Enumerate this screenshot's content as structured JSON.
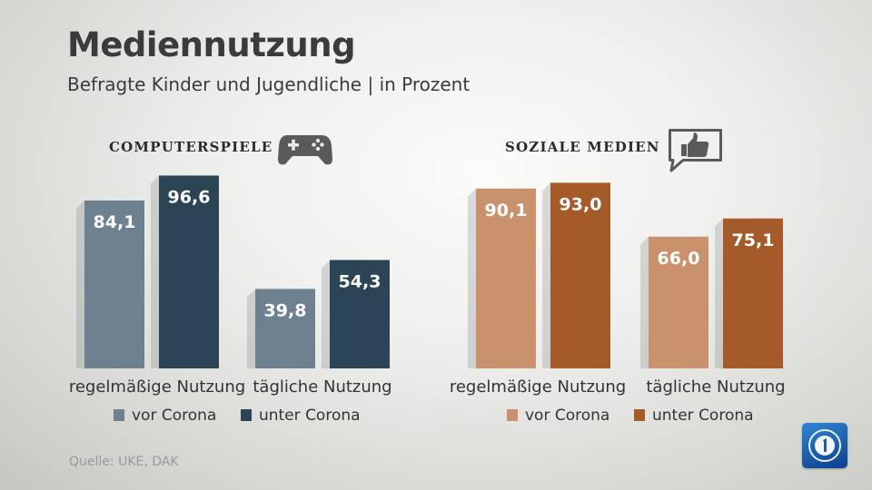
{
  "title": "Mediennutzung",
  "subtitle": "Befragte Kinder und Jugendliche | in Prozent",
  "source": "Quelle: UKE, DAK",
  "icons": {
    "left": "gamepad-icon",
    "right": "thumbs-up-speech-bubble-icon",
    "logo": "tagesschau-logo-icon"
  },
  "colors": {
    "computer_vor": "#6e8190",
    "computer_unter": "#2c4556",
    "social_vor": "#c9916c",
    "social_unter": "#a55a2a"
  },
  "chart_data": [
    {
      "type": "bar",
      "title": "COMPUTERSPIELE",
      "categories": [
        "regelmäßige Nutzung",
        "tägliche Nutzung"
      ],
      "series": [
        {
          "name": "vor Corona",
          "values": [
            84.1,
            39.8
          ],
          "labels": [
            "84,1",
            "39,8"
          ],
          "color": "#6e8190"
        },
        {
          "name": "unter Corona",
          "values": [
            96.6,
            54.3
          ],
          "labels": [
            "96,6",
            "54,3"
          ],
          "color": "#2c4556"
        }
      ],
      "ylim": [
        0,
        100
      ],
      "grid": false,
      "legend": "bottom"
    },
    {
      "type": "bar",
      "title": "SOZIALE MEDIEN",
      "categories": [
        "regelmäßige Nutzung",
        "tägliche Nutzung"
      ],
      "series": [
        {
          "name": "vor Corona",
          "values": [
            90.1,
            66.0
          ],
          "labels": [
            "90,1",
            "66,0"
          ],
          "color": "#c9916c"
        },
        {
          "name": "unter Corona",
          "values": [
            93.0,
            75.1
          ],
          "labels": [
            "93,0",
            "75,1"
          ],
          "color": "#a55a2a"
        }
      ],
      "ylim": [
        0,
        100
      ],
      "grid": false,
      "legend": "bottom"
    }
  ]
}
